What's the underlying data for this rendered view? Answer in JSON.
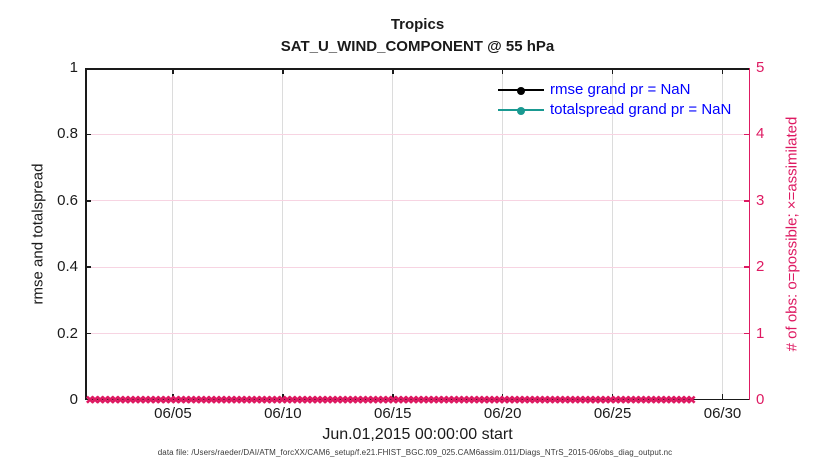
{
  "chart_data": {
    "type": "line",
    "title": "Tropics",
    "subtitle": "SAT_U_WIND_COMPONENT @ 55 hPa",
    "xlabel": "Jun.01,2015 00:00:00 start",
    "ylabel_left": "rmse and totalspread",
    "ylabel_right": "# of obs: o=possible; ×=assimilated",
    "footnote": "data file: /Users/raeder/DAI/ATM_forcXX/CAM6_setup/f.e21.FHIST_BGC.f09_025.CAM6assim.011/Diags_NTrS_2015-06/obs_diag_output.nc",
    "ylim_left": [
      0,
      1
    ],
    "ylim_right": [
      0,
      5
    ],
    "yticks_left": {
      "values": [
        0,
        0.2,
        0.4,
        0.6,
        0.8,
        1
      ],
      "labels": [
        "0",
        "0.2",
        "0.4",
        "0.6",
        "0.8",
        "1"
      ]
    },
    "yticks_right": {
      "values": [
        0,
        1,
        2,
        3,
        4,
        5
      ],
      "labels": [
        "0",
        "1",
        "2",
        "3",
        "4",
        "5"
      ]
    },
    "xticks": {
      "labels": [
        "06/05",
        "06/10",
        "06/15",
        "06/20",
        "06/25",
        "06/30"
      ],
      "days": [
        5,
        10,
        15,
        20,
        25,
        30
      ]
    },
    "x_axis": {
      "start_day": 1,
      "span_days": 30.25,
      "start_label": "06/01",
      "end_label": "06/30"
    },
    "grid": {
      "x_on": true,
      "y_on": true
    },
    "legend": {
      "position": "top-right-inside",
      "items": [
        {
          "label": "rmse grand pr = NaN",
          "color": "#000000",
          "marker": "filled-circle"
        },
        {
          "label": "totalspread grand pr = NaN",
          "color": "#1A9991",
          "marker": "filled-circle"
        }
      ]
    },
    "series": [
      {
        "name": "rmse",
        "legend": "rmse grand pr = NaN",
        "axis": "left",
        "color": "#000000",
        "values": null,
        "note": "grand prior mean = NaN; no curve plotted"
      },
      {
        "name": "totalspread",
        "legend": "totalspread grand pr = NaN",
        "axis": "left",
        "color": "#1A9991",
        "values": null,
        "note": "grand prior mean = NaN; no curve plotted"
      },
      {
        "name": "obs-possible",
        "axis": "right",
        "marker": "o",
        "color": "#DE1A62",
        "constant_value": 0,
        "n_points": 120,
        "note": "all zero along the x axis, hidden under × markers"
      },
      {
        "name": "obs-assimilated",
        "axis": "right",
        "marker": "×",
        "glyph": "✖",
        "color": "#DE1A62",
        "constant_value": 0,
        "n_points": 120,
        "note": "dense row of zero-valued × markers spanning Jun 01 – Jul 01"
      }
    ]
  },
  "colors": {
    "background": "#FFFFFF",
    "axis_left": "#1a1a1a",
    "axis_right": "#DE1A62",
    "legend_text": "#0000FF",
    "grid_vertical": "#DCDCDC",
    "grid_horizontal": "#F7D4E2",
    "obs_markers": "#DE1A62",
    "tick_label_left": "#1a1a1a"
  }
}
